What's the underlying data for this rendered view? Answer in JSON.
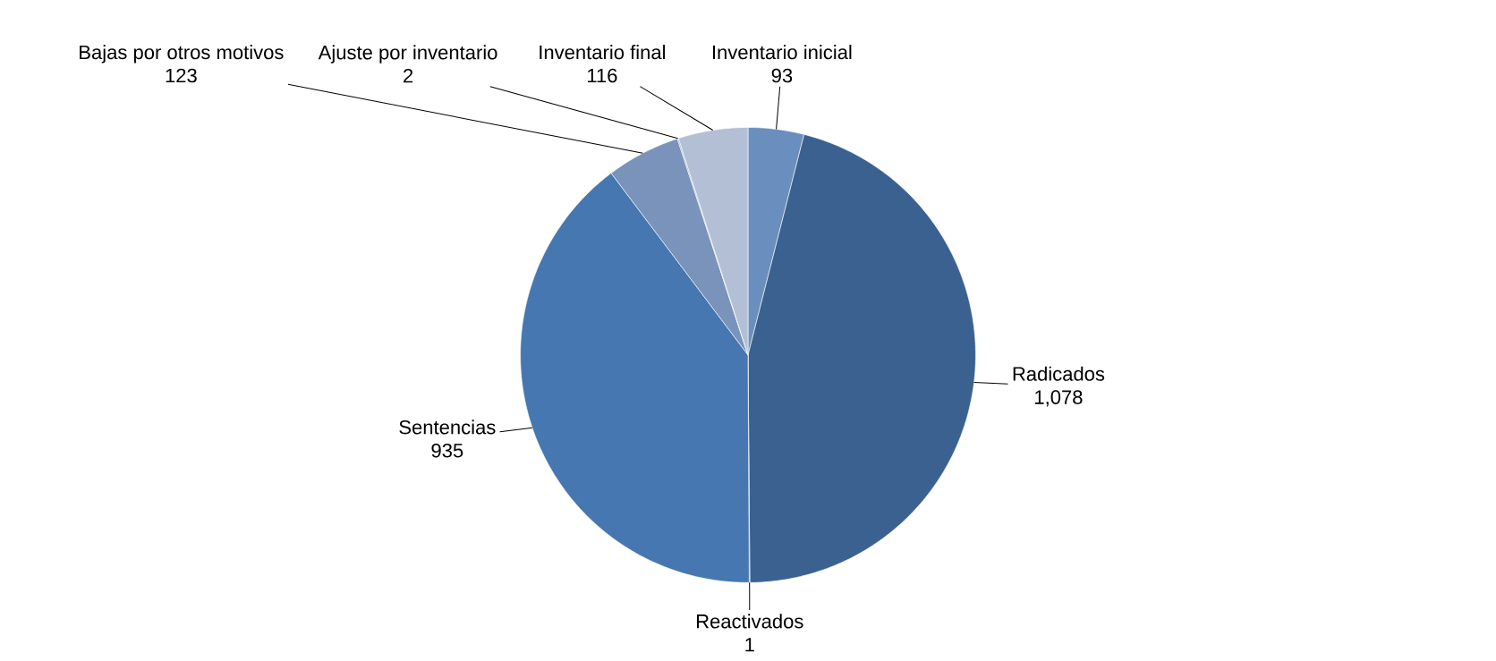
{
  "chart_data": {
    "type": "pie",
    "categories": [
      "Inventario inicial",
      "Radicados",
      "Reactivados",
      "Sentencias",
      "Bajas por otros motivos",
      "Ajuste por inventario",
      "Inventario final"
    ],
    "values": [
      93,
      1078,
      1,
      935,
      123,
      2,
      116
    ],
    "value_labels": [
      "93",
      "1,078",
      "1",
      "935",
      "123",
      "2",
      "116"
    ],
    "colors": [
      "#6a8fbf",
      "#3a6190",
      "#2f5480",
      "#4677b0",
      "#7a93bb",
      "#8fa3c6",
      "#b3bfd4"
    ]
  }
}
